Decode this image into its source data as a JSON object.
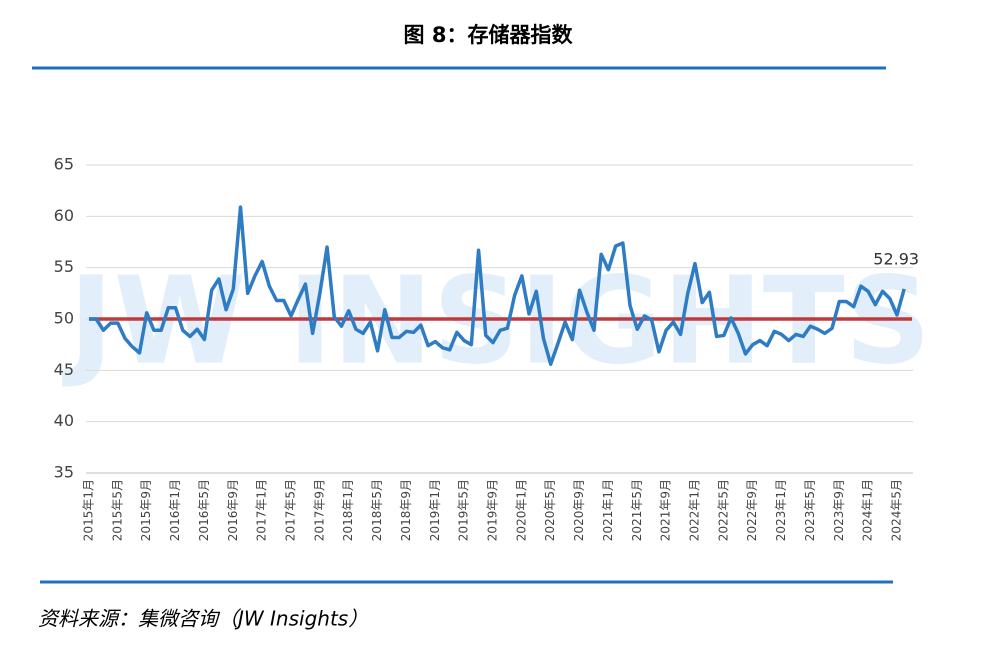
{
  "chart_data": {
    "type": "line",
    "title": "图 8：存储器指数",
    "source": "资料来源：集微咨询（JW Insights）",
    "watermark": "JW INSIGHTS",
    "categories": [
      "2015年1月",
      null,
      null,
      null,
      "2015年5月",
      null,
      null,
      null,
      "2015年9月",
      null,
      null,
      null,
      "2016年1月",
      null,
      null,
      null,
      "2016年5月",
      null,
      null,
      null,
      "2016年9月",
      null,
      null,
      null,
      "2017年1月",
      null,
      null,
      null,
      "2017年5月",
      null,
      null,
      null,
      "2017年9月",
      null,
      null,
      null,
      "2018年1月",
      null,
      null,
      null,
      "2018年5月",
      null,
      null,
      null,
      "2018年9月",
      null,
      null,
      null,
      "2019年1月",
      null,
      null,
      null,
      "2019年5月",
      null,
      null,
      null,
      "2019年9月",
      null,
      null,
      null,
      "2020年1月",
      null,
      null,
      null,
      "2020年5月",
      null,
      null,
      null,
      "2020年9月",
      null,
      null,
      null,
      "2021年1月",
      null,
      null,
      null,
      "2021年5月",
      null,
      null,
      null,
      "2021年9月",
      null,
      null,
      null,
      "2022年1月",
      null,
      null,
      null,
      "2022年5月",
      null,
      null,
      null,
      "2022年9月",
      null,
      null,
      null,
      "2023年1月",
      null,
      null,
      null,
      "2023年5月",
      null,
      null,
      null,
      "2023年9月",
      null,
      null,
      null,
      "2024年1月",
      null,
      null,
      null,
      "2024年5月",
      null
    ],
    "series": [
      {
        "color": "#2e7cc4",
        "values": [
          50.0,
          50.0,
          48.9,
          49.6,
          49.6,
          48.1,
          47.3,
          46.7,
          50.6,
          48.9,
          48.9,
          51.1,
          51.1,
          48.9,
          48.3,
          49.0,
          48.0,
          52.8,
          53.9,
          50.9,
          52.9,
          60.9,
          52.5,
          54.2,
          55.6,
          53.2,
          51.8,
          51.8,
          50.3,
          51.9,
          53.4,
          48.6,
          52.5,
          57.0,
          50.2,
          49.3,
          50.8,
          49.0,
          48.6,
          49.7,
          46.9,
          50.9,
          48.2,
          48.2,
          48.8,
          48.7,
          49.4,
          47.4,
          47.8,
          47.2,
          47.0,
          48.7,
          47.9,
          47.5,
          56.7,
          48.4,
          47.7,
          48.9,
          49.1,
          52.3,
          54.2,
          50.5,
          52.7,
          48.1,
          45.6,
          47.6,
          49.7,
          48.0,
          52.8,
          50.7,
          48.9,
          56.3,
          54.8,
          57.1,
          57.4,
          51.3,
          49.0,
          50.3,
          49.9,
          46.8,
          48.9,
          49.7,
          48.5,
          52.5,
          55.4,
          51.6,
          52.6,
          48.3,
          48.4,
          50.1,
          48.6,
          46.6,
          47.5,
          47.9,
          47.4,
          48.8,
          48.5,
          47.9,
          48.5,
          48.3,
          49.3,
          49.0,
          48.6,
          49.1,
          51.7,
          51.7,
          51.2,
          53.2,
          52.7,
          51.4,
          52.7,
          52.0,
          50.4,
          52.93
        ]
      }
    ],
    "reference_line": {
      "value": 50,
      "color": "#c0393b"
    },
    "ylim": [
      35,
      65
    ],
    "yticks": [
      35,
      40,
      45,
      50,
      55,
      60,
      65
    ],
    "grid": true
  }
}
